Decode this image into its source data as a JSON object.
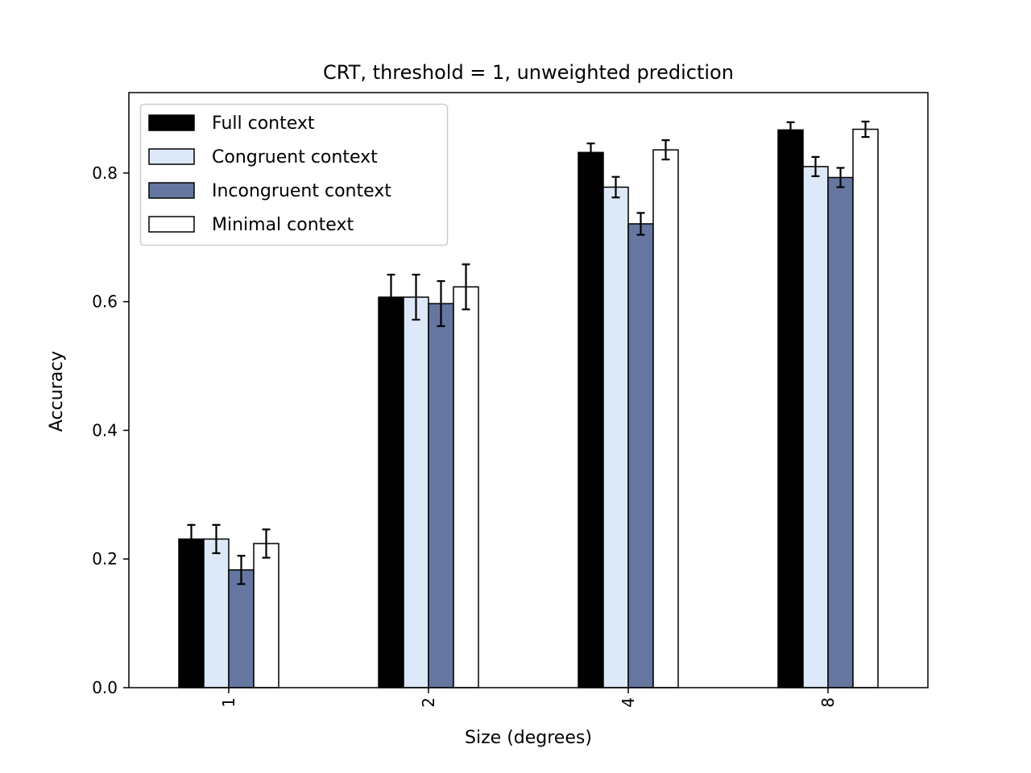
{
  "chart_data": {
    "type": "bar",
    "title": "CRT, threshold = 1, unweighted prediction",
    "xlabel": "Size (degrees)",
    "ylabel": "Accuracy",
    "categories": [
      "1",
      "2",
      "4",
      "8"
    ],
    "ylim": [
      0,
      0.925
    ],
    "yticks": [
      "0.0",
      "0.2",
      "0.4",
      "0.6",
      "0.8"
    ],
    "grid": false,
    "legend_position": "upper-left",
    "series": [
      {
        "name": "Full context",
        "color": "#000000",
        "values": [
          0.231,
          0.607,
          0.832,
          0.867
        ],
        "errors": [
          0.022,
          0.035,
          0.014,
          0.012
        ]
      },
      {
        "name": "Congruent context",
        "color": "#dde8f8",
        "values": [
          0.231,
          0.607,
          0.778,
          0.81
        ],
        "errors": [
          0.022,
          0.035,
          0.016,
          0.015
        ]
      },
      {
        "name": "Incongruent context",
        "color": "#6577a0",
        "values": [
          0.183,
          0.597,
          0.721,
          0.793
        ],
        "errors": [
          0.022,
          0.035,
          0.017,
          0.015
        ]
      },
      {
        "name": "Minimal context",
        "color": "#ffffff",
        "values": [
          0.224,
          0.623,
          0.836,
          0.868
        ],
        "errors": [
          0.022,
          0.035,
          0.015,
          0.012
        ]
      }
    ]
  }
}
